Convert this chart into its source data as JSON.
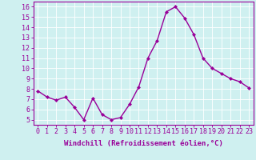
{
  "x": [
    0,
    1,
    2,
    3,
    4,
    5,
    6,
    7,
    8,
    9,
    10,
    11,
    12,
    13,
    14,
    15,
    16,
    17,
    18,
    19,
    20,
    21,
    22,
    23
  ],
  "y": [
    7.8,
    7.2,
    6.9,
    7.2,
    6.2,
    5.0,
    7.1,
    5.5,
    5.0,
    5.2,
    6.5,
    8.2,
    11.0,
    12.7,
    15.5,
    16.0,
    14.9,
    13.3,
    11.0,
    10.0,
    9.5,
    9.0,
    8.7,
    8.1
  ],
  "line_color": "#990099",
  "marker": "D",
  "marker_size": 2.0,
  "linewidth": 1.0,
  "xlabel": "Windchill (Refroidissement éolien,°C)",
  "xlabel_fontsize": 6.5,
  "xlim": [
    -0.5,
    23.5
  ],
  "ylim": [
    4.5,
    16.5
  ],
  "yticks": [
    5,
    6,
    7,
    8,
    9,
    10,
    11,
    12,
    13,
    14,
    15,
    16
  ],
  "xticks": [
    0,
    1,
    2,
    3,
    4,
    5,
    6,
    7,
    8,
    9,
    10,
    11,
    12,
    13,
    14,
    15,
    16,
    17,
    18,
    19,
    20,
    21,
    22,
    23
  ],
  "grid_color": "#ffffff",
  "bg_color": "#cff0f0",
  "tick_fontsize": 6.0,
  "spine_color": "#990099"
}
